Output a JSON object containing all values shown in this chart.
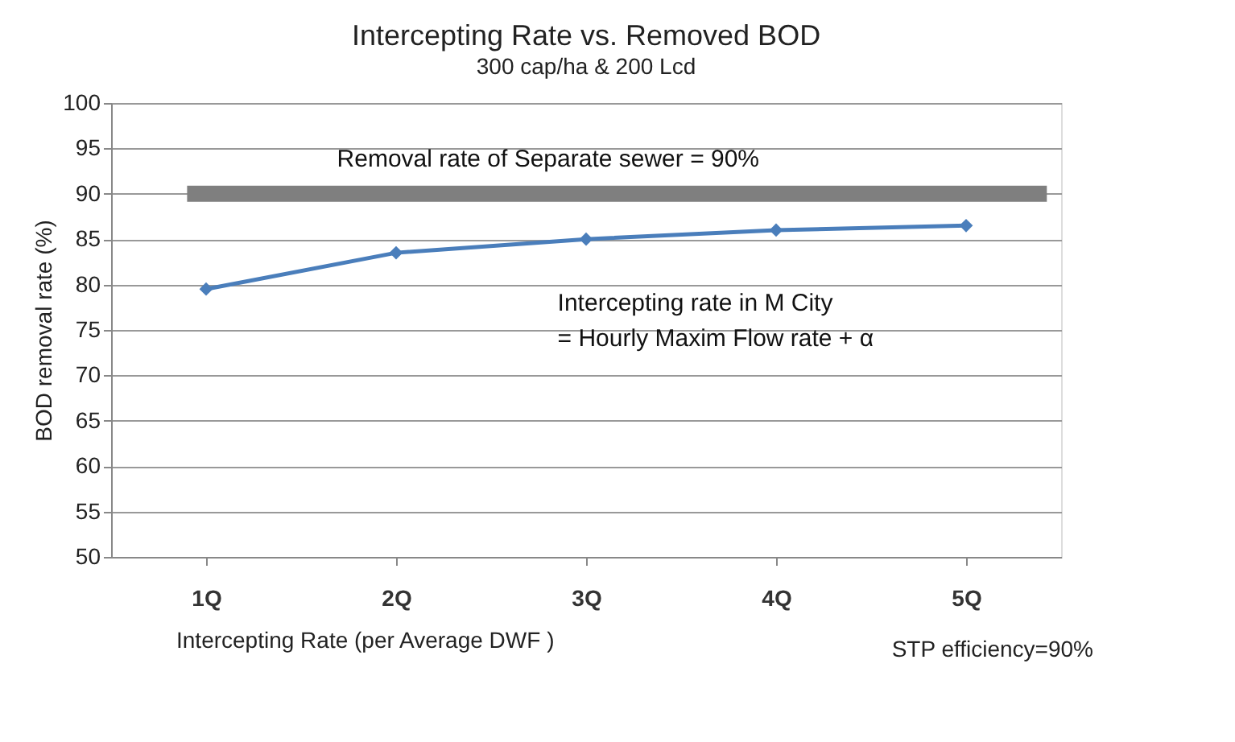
{
  "chart_data": {
    "type": "line",
    "title": "Intercepting Rate  vs. Removed BOD",
    "subtitle": "300 cap/ha & 200 Lcd",
    "xlabel": "Intercepting Rate (per Average DWF )",
    "ylabel": "BOD removal rate (%)",
    "categories": [
      "1Q",
      "2Q",
      "3Q",
      "4Q",
      "5Q"
    ],
    "series": [
      {
        "color": "#4a7ebb",
        "values": [
          79.5,
          83.5,
          85,
          86,
          86.5
        ]
      }
    ],
    "ylim": [
      50,
      100
    ],
    "yticks": [
      50,
      55,
      60,
      65,
      70,
      75,
      80,
      85,
      90,
      95,
      100
    ],
    "ref_lines": [
      {
        "axis": "y",
        "value": 90,
        "label": "Removal rate of Separate sewer = 90%",
        "color": "#7f7f7f"
      }
    ],
    "annotations": [
      "Intercepting rate in M City\n= Hourly Maxim Flow rate + α",
      "STP efficiency=90%"
    ],
    "grid": "y",
    "marker": "diamond",
    "line_style": "solid"
  }
}
